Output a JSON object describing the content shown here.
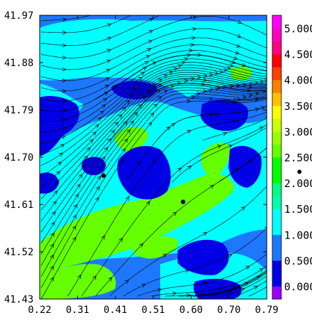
{
  "chart_data": {
    "type": "heatmap",
    "title": "",
    "xlabel": "",
    "ylabel": "",
    "xlim": [
      0.22,
      0.79
    ],
    "ylim": [
      41.43,
      41.97
    ],
    "x_ticks": [
      "0.22",
      "0.31",
      "0.41",
      "0.51",
      "0.60",
      "0.70",
      "0.79"
    ],
    "y_ticks": [
      "41.43",
      "41.52",
      "41.61",
      "41.70",
      "41.79",
      "41.88",
      "41.97"
    ],
    "colorbar": {
      "labels": [
        "0.000",
        "0.500",
        "1.000",
        "1.500",
        "2.000",
        "2.500",
        "3.000",
        "3.500",
        "4.000",
        "4.500",
        "5.000"
      ],
      "levels": [
        0.0,
        0.25,
        0.5,
        0.75,
        1.0,
        1.25,
        1.5,
        1.75,
        2.0,
        2.25,
        2.5,
        2.75,
        3.0,
        3.25,
        3.5,
        3.75,
        4.0,
        4.25,
        4.5,
        4.75,
        5.0
      ],
      "colors": [
        "#9b00ff",
        "#0000e6",
        "#0000e6",
        "#1e78ff",
        "#1e78ff",
        "#00ffff",
        "#00ffff",
        "#00ffaa",
        "#00ff80",
        "#00ff00",
        "#00ff00",
        "#66ff00",
        "#99ff00",
        "#ccff00",
        "#ffff00",
        "#ffc000",
        "#ff8000",
        "#ff4000",
        "#ff0000",
        "#ff0080",
        "#ff00c0",
        "#ff00ff"
      ]
    },
    "field_colors": {
      "low": "#0000e6",
      "mid_low": "#1e78ff",
      "mid": "#00ffff",
      "mid_high": "#00ffaa",
      "high": "#66ff00"
    },
    "markers": [
      {
        "x": 0.38,
        "y": 41.665
      },
      {
        "x": 0.58,
        "y": 41.615
      }
    ],
    "streamlines": true
  }
}
